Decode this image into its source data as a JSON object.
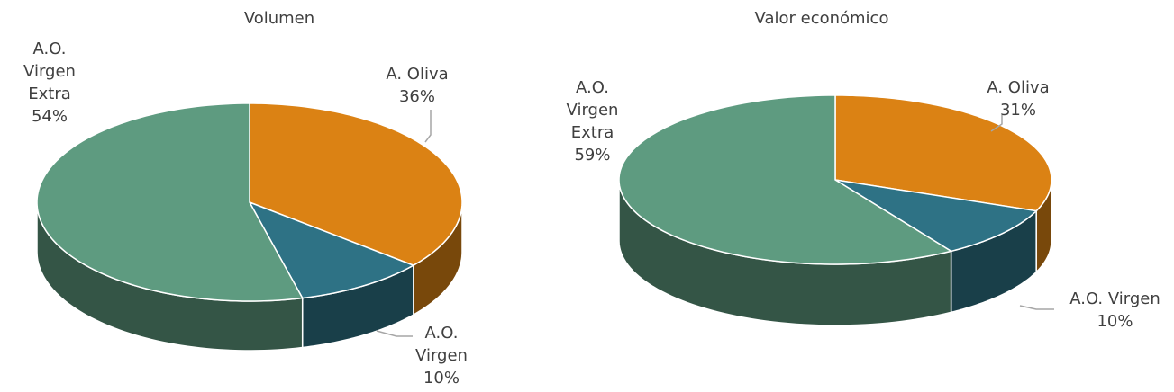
{
  "chart_data": [
    {
      "type": "pie",
      "title": "Volumen",
      "categories": [
        "A. Oliva",
        "A.O. Virgen",
        "A.O. Virgen Extra"
      ],
      "values": [
        36,
        10,
        54
      ],
      "value_labels": [
        "36%",
        "10%",
        "54%"
      ],
      "colors": [
        "#db8214",
        "#2e7285",
        "#5e9b80"
      ]
    },
    {
      "type": "pie",
      "title": "Valor económico",
      "categories": [
        "A. Oliva",
        "A.O. Virgen",
        "A.O. Virgen Extra"
      ],
      "values": [
        31,
        10,
        59
      ],
      "value_labels": [
        "31%",
        "10%",
        "59%"
      ],
      "colors": [
        "#db8214",
        "#2e7285",
        "#5e9b80"
      ]
    }
  ]
}
